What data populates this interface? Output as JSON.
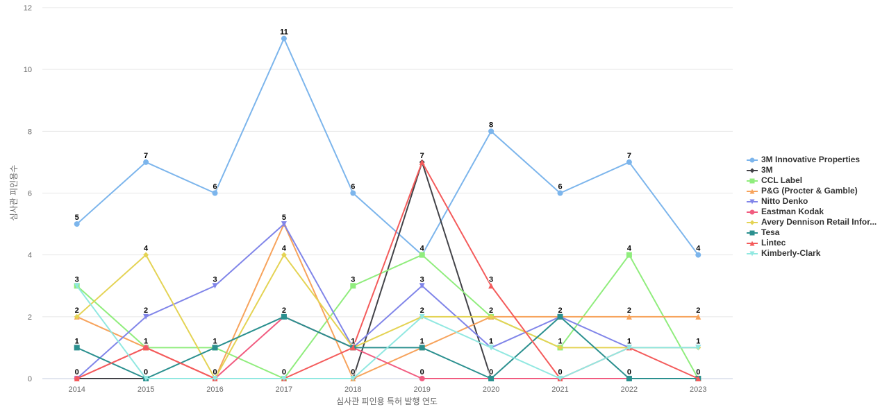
{
  "chart_data": {
    "type": "line",
    "title": "",
    "xlabel": "심사관 피인용 특허 발행 연도",
    "ylabel": "심사관 피인용수",
    "categories": [
      "2014",
      "2015",
      "2016",
      "2017",
      "2018",
      "2019",
      "2020",
      "2021",
      "2022",
      "2023"
    ],
    "ylim": [
      0,
      12
    ],
    "yticks": [
      0,
      2,
      4,
      6,
      8,
      10,
      12
    ],
    "grid": true,
    "legend_position": "right",
    "series": [
      {
        "name": "3M Innovative Properties",
        "color": "#7cb5ec",
        "marker": "circle",
        "values": [
          5,
          7,
          6,
          11,
          6,
          4,
          8,
          6,
          7,
          4
        ]
      },
      {
        "name": "3M",
        "color": "#434348",
        "marker": "diamond",
        "values": [
          0,
          0,
          0,
          0,
          0,
          7,
          0,
          0,
          0,
          0
        ]
      },
      {
        "name": "CCL Label",
        "color": "#90ed7d",
        "marker": "square",
        "values": [
          3,
          1,
          1,
          0,
          3,
          4,
          2,
          1,
          4,
          0
        ]
      },
      {
        "name": "P&G (Procter & Gamble)",
        "color": "#f7a35c",
        "marker": "triangle",
        "values": [
          2,
          1,
          0,
          5,
          0,
          1,
          2,
          2,
          2,
          2
        ]
      },
      {
        "name": "Nitto Denko",
        "color": "#8085e9",
        "marker": "triangle-down",
        "values": [
          0,
          2,
          3,
          5,
          1,
          3,
          1,
          2,
          1,
          1
        ]
      },
      {
        "name": "Eastman Kodak",
        "color": "#f15c80",
        "marker": "circle",
        "values": [
          0,
          1,
          0,
          2,
          1,
          0,
          0,
          0,
          0,
          0
        ]
      },
      {
        "name": "Avery Dennison Retail Infor...",
        "color": "#e4d354",
        "marker": "diamond",
        "values": [
          2,
          4,
          0,
          4,
          1,
          2,
          2,
          1,
          1,
          1
        ]
      },
      {
        "name": "Tesa",
        "color": "#2b908f",
        "marker": "square",
        "values": [
          1,
          0,
          1,
          2,
          1,
          1,
          0,
          2,
          0,
          0
        ]
      },
      {
        "name": "Lintec",
        "color": "#f45b5b",
        "marker": "triangle",
        "values": [
          0,
          1,
          0,
          0,
          1,
          7,
          3,
          0,
          1,
          0
        ]
      },
      {
        "name": "Kimberly-Clark",
        "color": "#91e8e1",
        "marker": "triangle-down",
        "values": [
          3,
          0,
          0,
          0,
          0,
          2,
          1,
          0,
          1,
          1
        ]
      }
    ],
    "top_labels": [
      {
        "category": "2014",
        "value": 5
      },
      {
        "category": "2014",
        "value": 3
      },
      {
        "category": "2014",
        "value": 2
      },
      {
        "category": "2014",
        "value": 1
      },
      {
        "category": "2014",
        "value": 0
      },
      {
        "category": "2015",
        "value": 7
      },
      {
        "category": "2015",
        "value": 4
      },
      {
        "category": "2015",
        "value": 2
      },
      {
        "category": "2015",
        "value": 1
      },
      {
        "category": "2015",
        "value": 0
      },
      {
        "category": "2016",
        "value": 6
      },
      {
        "category": "2016",
        "value": 3
      },
      {
        "category": "2016",
        "value": 1
      },
      {
        "category": "2016",
        "value": 0
      },
      {
        "category": "2017",
        "value": 11
      },
      {
        "category": "2017",
        "value": 5
      },
      {
        "category": "2017",
        "value": 4
      },
      {
        "category": "2017",
        "value": 2
      },
      {
        "category": "2017",
        "value": 0
      },
      {
        "category": "2018",
        "value": 6
      },
      {
        "category": "2018",
        "value": 3
      },
      {
        "category": "2018",
        "value": 1
      },
      {
        "category": "2018",
        "value": 0
      },
      {
        "category": "2019",
        "value": 7
      },
      {
        "category": "2019",
        "value": 4
      },
      {
        "category": "2019",
        "value": 3
      },
      {
        "category": "2019",
        "value": 2
      },
      {
        "category": "2019",
        "value": 1
      },
      {
        "category": "2019",
        "value": 0
      },
      {
        "category": "2020",
        "value": 8
      },
      {
        "category": "2020",
        "value": 3
      },
      {
        "category": "2020",
        "value": 2
      },
      {
        "category": "2020",
        "value": 1
      },
      {
        "category": "2020",
        "value": 0
      },
      {
        "category": "2021",
        "value": 6
      },
      {
        "category": "2021",
        "value": 2
      },
      {
        "category": "2021",
        "value": 1
      },
      {
        "category": "2021",
        "value": 0
      },
      {
        "category": "2022",
        "value": 7
      },
      {
        "category": "2022",
        "value": 4
      },
      {
        "category": "2022",
        "value": 2
      },
      {
        "category": "2022",
        "value": 1
      },
      {
        "category": "2022",
        "value": 0
      },
      {
        "category": "2023",
        "value": 4
      },
      {
        "category": "2023",
        "value": 2
      },
      {
        "category": "2023",
        "value": 1
      },
      {
        "category": "2023",
        "value": 0
      }
    ]
  }
}
